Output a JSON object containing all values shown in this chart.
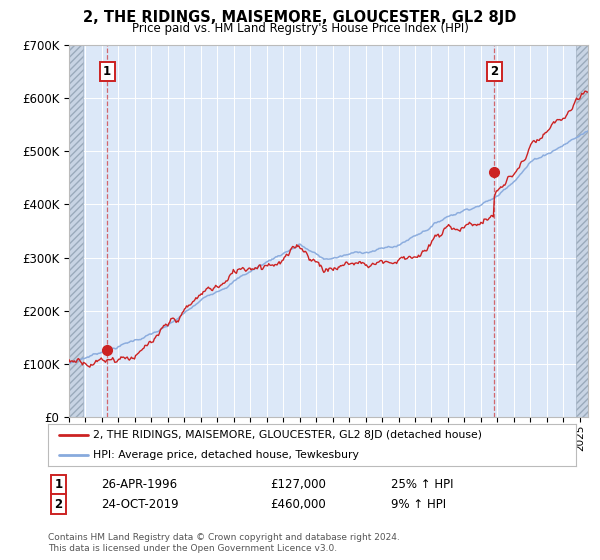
{
  "title": "2, THE RIDINGS, MAISEMORE, GLOUCESTER, GL2 8JD",
  "subtitle": "Price paid vs. HM Land Registry's House Price Index (HPI)",
  "ylim": [
    0,
    700000
  ],
  "yticks": [
    0,
    100000,
    200000,
    300000,
    400000,
    500000,
    600000,
    700000
  ],
  "ytick_labels": [
    "£0",
    "£100K",
    "£200K",
    "£300K",
    "£400K",
    "£500K",
    "£600K",
    "£700K"
  ],
  "xlim_start": 1994.0,
  "xlim_end": 2025.5,
  "plot_bg": "#dce8f8",
  "hatch_bg": "#c8d4e4",
  "sale1_x": 1996.32,
  "sale1_y": 127000,
  "sale2_x": 2019.81,
  "sale2_y": 460000,
  "sale1_label": "26-APR-1996",
  "sale1_price": "£127,000",
  "sale1_hpi": "25% ↑ HPI",
  "sale2_label": "24-OCT-2019",
  "sale2_price": "£460,000",
  "sale2_hpi": "9% ↑ HPI",
  "legend_line1": "2, THE RIDINGS, MAISEMORE, GLOUCESTER, GL2 8JD (detached house)",
  "legend_line2": "HPI: Average price, detached house, Tewkesbury",
  "footer": "Contains HM Land Registry data © Crown copyright and database right 2024.\nThis data is licensed under the Open Government Licence v3.0.",
  "red_color": "#cc2222",
  "blue_color": "#88aadd",
  "grid_color": "#ffffff",
  "spine_color": "#bbbbbb"
}
